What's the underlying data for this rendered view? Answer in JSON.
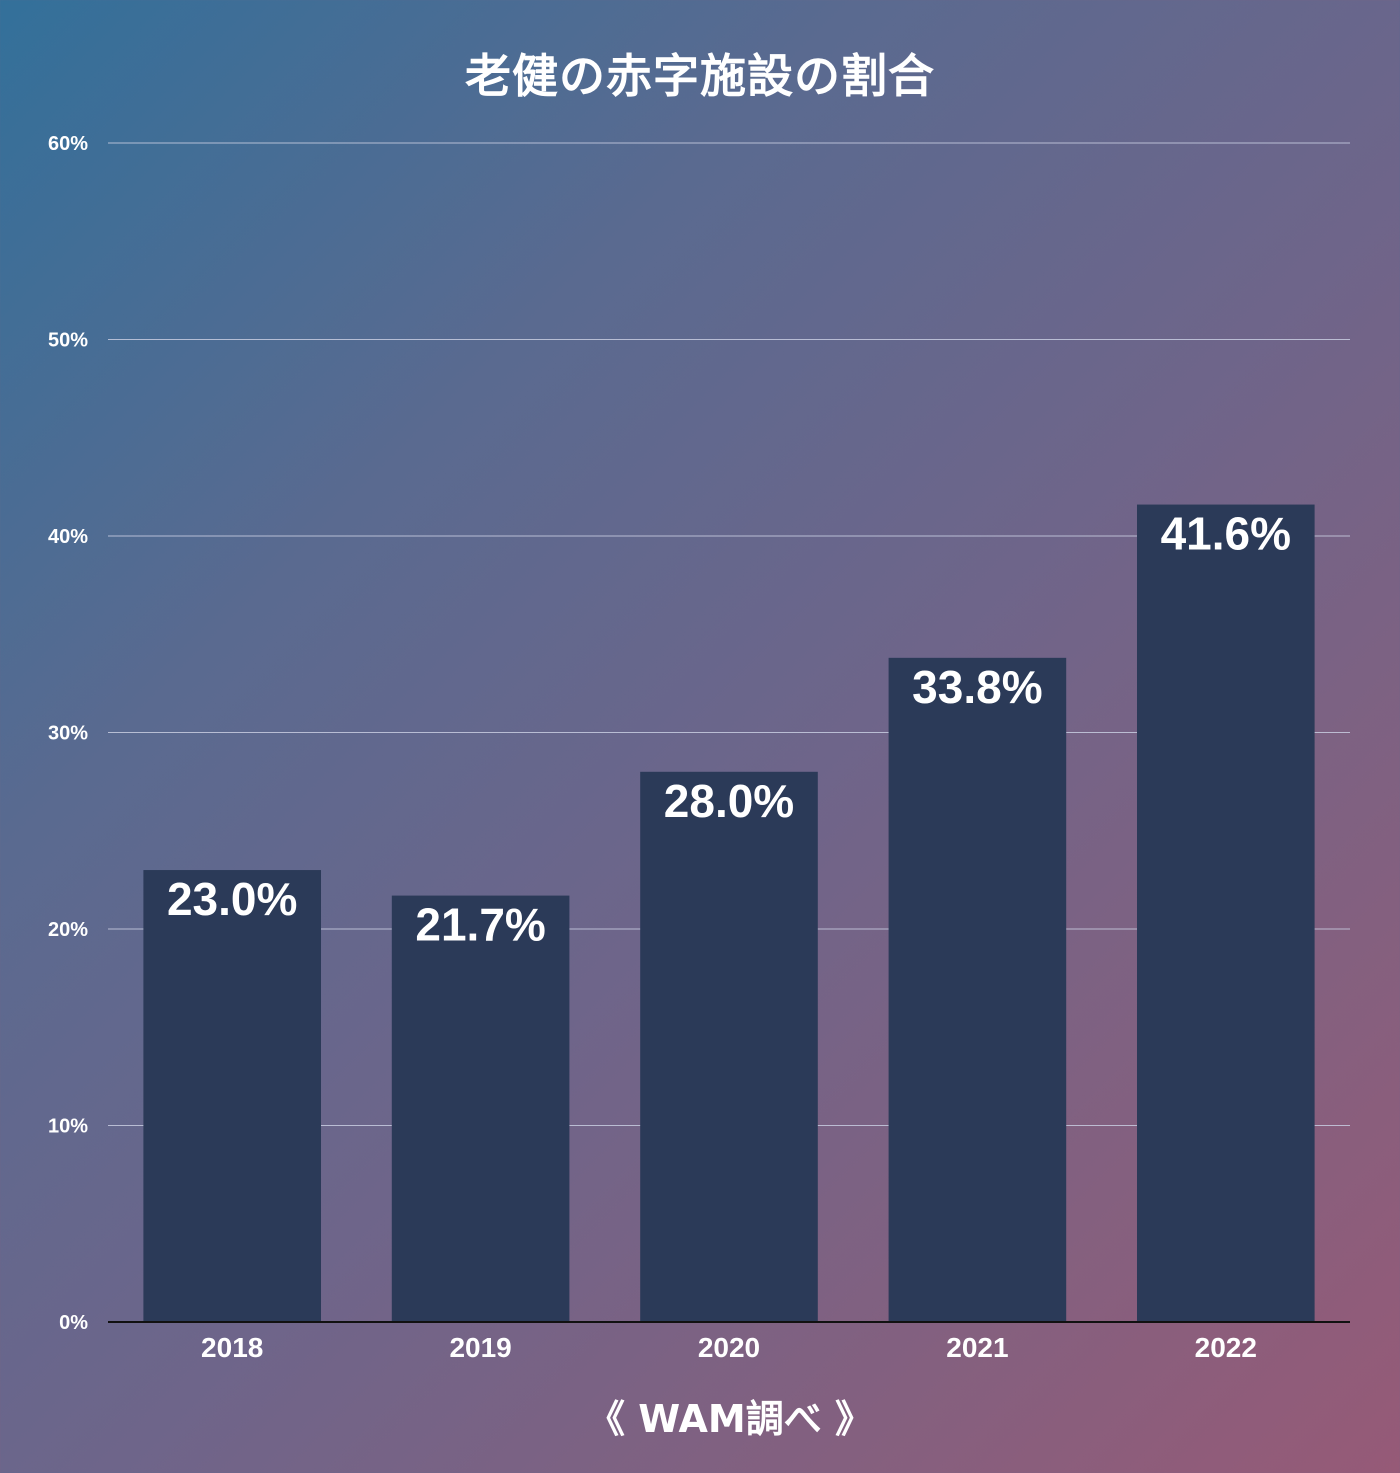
{
  "chart_data": {
    "type": "bar",
    "title": "老健の赤字施設の割合",
    "source": "《 WAM調べ 》",
    "categories": [
      "2018",
      "2019",
      "2020",
      "2021",
      "2022"
    ],
    "values": [
      23.0,
      21.7,
      28.0,
      33.8,
      41.6
    ],
    "data_labels": [
      "23.0%",
      "21.7%",
      "28.0%",
      "33.8%",
      "41.6%"
    ],
    "xlabel": "",
    "ylabel": "",
    "ylim": [
      0,
      60
    ],
    "yticks": [
      0,
      10,
      20,
      30,
      40,
      50,
      60
    ],
    "ytick_labels": [
      "0%",
      "10%",
      "20%",
      "30%",
      "40%",
      "50%",
      "60%"
    ],
    "grid": true,
    "legend": "none",
    "colors": {
      "bar": "#2b3a58",
      "grid": "#c8cde0",
      "axis": "#111111",
      "text": "#ffffff"
    }
  }
}
